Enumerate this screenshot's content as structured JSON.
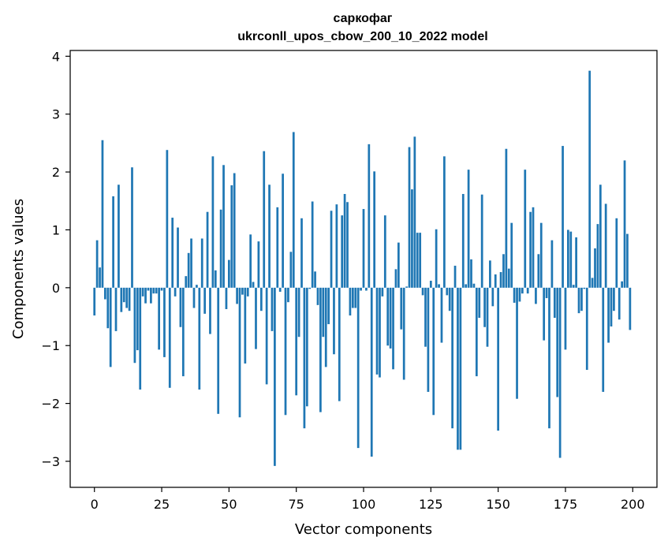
{
  "chart_data": {
    "type": "bar",
    "title": "саркофаг",
    "subtitle": "ukrconll_upos_cbow_200_10_2022 model",
    "xlabel": "Vector components",
    "ylabel": "Components values",
    "xlim": [
      -9,
      209
    ],
    "ylim": [
      -3.45,
      4.1
    ],
    "xticks": [
      0,
      25,
      50,
      75,
      100,
      125,
      150,
      175,
      200
    ],
    "xtick_labels": [
      "0",
      "25",
      "50",
      "75",
      "100",
      "125",
      "150",
      "175",
      "200"
    ],
    "yticks": [
      -3,
      -2,
      -1,
      0,
      1,
      2,
      3,
      4
    ],
    "ytick_labels": [
      "−3",
      "−2",
      "−1",
      "0",
      "1",
      "2",
      "3",
      "4"
    ],
    "grid": false,
    "bar_color": "#1f77b4",
    "x": [
      0,
      1,
      2,
      3,
      4,
      5,
      6,
      7,
      8,
      9,
      10,
      11,
      12,
      13,
      14,
      15,
      16,
      17,
      18,
      19,
      20,
      21,
      22,
      23,
      24,
      25,
      26,
      27,
      28,
      29,
      30,
      31,
      32,
      33,
      34,
      35,
      36,
      37,
      38,
      39,
      40,
      41,
      42,
      43,
      44,
      45,
      46,
      47,
      48,
      49,
      50,
      51,
      52,
      53,
      54,
      55,
      56,
      57,
      58,
      59,
      60,
      61,
      62,
      63,
      64,
      65,
      66,
      67,
      68,
      69,
      70,
      71,
      72,
      73,
      74,
      75,
      76,
      77,
      78,
      79,
      80,
      81,
      82,
      83,
      84,
      85,
      86,
      87,
      88,
      89,
      90,
      91,
      92,
      93,
      94,
      95,
      96,
      97,
      98,
      99,
      100,
      101,
      102,
      103,
      104,
      105,
      106,
      107,
      108,
      109,
      110,
      111,
      112,
      113,
      114,
      115,
      116,
      117,
      118,
      119,
      120,
      121,
      122,
      123,
      124,
      125,
      126,
      127,
      128,
      129,
      130,
      131,
      132,
      133,
      134,
      135,
      136,
      137,
      138,
      139,
      140,
      141,
      142,
      143,
      144,
      145,
      146,
      147,
      148,
      149,
      150,
      151,
      152,
      153,
      154,
      155,
      156,
      157,
      158,
      159,
      160,
      161,
      162,
      163,
      164,
      165,
      166,
      167,
      168,
      169,
      170,
      171,
      172,
      173,
      174,
      175,
      176,
      177,
      178,
      179,
      180,
      181,
      182,
      183,
      184,
      185,
      186,
      187,
      188,
      189,
      190,
      191,
      192,
      193,
      194,
      195,
      196,
      197,
      198,
      199
    ],
    "values": [
      -0.48,
      0.82,
      0.35,
      2.55,
      -0.2,
      -0.7,
      -1.37,
      1.58,
      -0.75,
      1.78,
      -0.42,
      -0.25,
      -0.35,
      -0.4,
      2.08,
      -1.3,
      -1.08,
      -1.76,
      -0.15,
      -0.27,
      -0.05,
      -0.27,
      -0.1,
      -0.1,
      -1.07,
      -0.05,
      -1.2,
      2.38,
      -1.73,
      1.21,
      -0.15,
      1.04,
      -0.68,
      -1.53,
      0.2,
      0.6,
      0.85,
      -0.35,
      0.05,
      -1.76,
      0.85,
      -0.45,
      1.31,
      -0.8,
      2.27,
      0.3,
      -2.18,
      1.35,
      2.12,
      -0.37,
      0.48,
      1.77,
      1.98,
      -0.28,
      -2.24,
      -0.12,
      -1.31,
      -0.15,
      0.92,
      0.1,
      -1.06,
      0.8,
      -0.4,
      2.36,
      -1.67,
      1.78,
      -0.75,
      -3.08,
      1.39,
      -0.07,
      1.97,
      -2.2,
      -0.25,
      0.62,
      2.69,
      -1.86,
      -0.85,
      1.2,
      -2.43,
      -2.05,
      -0.02,
      1.49,
      0.28,
      -0.3,
      -2.15,
      -0.85,
      -1.37,
      -0.63,
      1.33,
      -1.15,
      1.44,
      -1.96,
      1.25,
      1.62,
      1.48,
      -0.48,
      -0.35,
      -0.35,
      -2.77,
      -0.05,
      1.36,
      -0.05,
      2.48,
      -2.92,
      2.01,
      -1.5,
      -1.55,
      -0.15,
      1.25,
      -1.0,
      -1.05,
      -1.41,
      0.32,
      0.78,
      -0.72,
      -1.59,
      0.02,
      2.43,
      1.7,
      2.61,
      0.95,
      0.95,
      -0.13,
      -1.02,
      -1.8,
      0.12,
      -2.2,
      1.01,
      0.06,
      -0.95,
      2.27,
      -0.13,
      -0.4,
      -2.43,
      0.38,
      -2.8,
      -2.8,
      1.62,
      0.06,
      2.04,
      0.49,
      0.07,
      -1.53,
      -0.52,
      1.61,
      -0.68,
      -1.02,
      0.47,
      -0.32,
      0.23,
      -2.47,
      0.27,
      0.58,
      2.4,
      0.33,
      1.12,
      -0.26,
      -1.92,
      -0.24,
      -0.1,
      2.04,
      -0.1,
      1.31,
      1.39,
      -0.28,
      0.58,
      1.12,
      -0.91,
      -0.18,
      -2.43,
      0.82,
      -0.52,
      -1.89,
      -2.94,
      2.45,
      -1.07,
      1.0,
      0.97,
      0.05,
      0.87,
      -0.44,
      -0.4,
      -0.02,
      -1.42,
      3.75,
      0.17,
      0.68,
      1.1,
      1.78,
      -1.8,
      1.45,
      -0.95,
      -0.67,
      -0.4,
      1.2,
      -0.55,
      0.11,
      2.2,
      0.93,
      -0.73
    ]
  }
}
